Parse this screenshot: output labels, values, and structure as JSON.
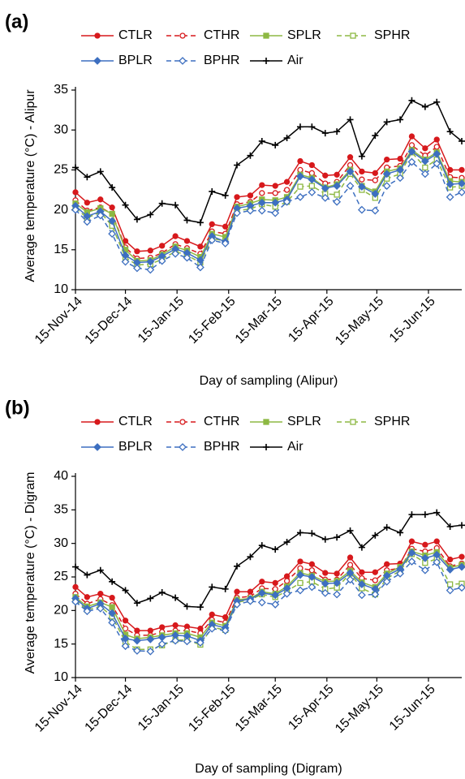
{
  "chart_data": [
    {
      "type": "line",
      "panel_label": "(a)",
      "y_label": "Average temperature (°C) - Alipur",
      "x_label": "Day of sampling (Alipur)",
      "legend": "top",
      "x": [
        "2014-11-15",
        "2014-11-22",
        "2014-11-30",
        "2014-12-07",
        "2014-12-15",
        "2014-12-22",
        "2014-12-30",
        "2015-01-06",
        "2015-01-14",
        "2015-01-21",
        "2015-01-29",
        "2015-02-05",
        "2015-02-13",
        "2015-02-20",
        "2015-02-28",
        "2015-03-07",
        "2015-03-15",
        "2015-03-22",
        "2015-03-30",
        "2015-04-06",
        "2015-04-14",
        "2015-04-21",
        "2015-04-29",
        "2015-05-06",
        "2015-05-14",
        "2015-05-21",
        "2015-05-29",
        "2015-06-05",
        "2015-06-13",
        "2015-06-20",
        "2015-06-28",
        "2015-07-05"
      ],
      "xlim": [
        "2014-11-15",
        "2015-07-05"
      ],
      "xticks": [
        {
          "value": "2014-11-15",
          "label": "15-Nov-14"
        },
        {
          "value": "2014-12-15",
          "label": "15-Dec-14"
        },
        {
          "value": "2015-01-15",
          "label": "15-Jan-15"
        },
        {
          "value": "2015-02-15",
          "label": "15-Feb-15"
        },
        {
          "value": "2015-03-15",
          "label": "15-Mar-15"
        },
        {
          "value": "2015-04-15",
          "label": "15-Apr-15"
        },
        {
          "value": "2015-05-15",
          "label": "15-May-15"
        },
        {
          "value": "2015-06-15",
          "label": "15-Jun-15"
        }
      ],
      "ylim": [
        10,
        35
      ],
      "yticks": [
        10,
        15,
        20,
        25,
        30,
        35
      ],
      "grid": false,
      "series": [
        {
          "name": "CTLR",
          "color": "#d7191c",
          "line_style": "solid",
          "marker": "circle",
          "marker_fill": "filled",
          "values": [
            22.2,
            20.9,
            21.3,
            20.3,
            16.1,
            14.8,
            14.9,
            15.5,
            16.7,
            16.1,
            15.4,
            18.2,
            17.9,
            21.6,
            21.8,
            23.1,
            23.0,
            23.5,
            26.1,
            25.6,
            24.3,
            24.4,
            26.6,
            24.8,
            24.6,
            26.3,
            26.4,
            29.2,
            27.7,
            28.8,
            25.0,
            25.0
          ]
        },
        {
          "name": "CTHR",
          "color": "#d7191c",
          "line_style": "dashed",
          "marker": "circle",
          "marker_fill": "hollow",
          "values": [
            21.2,
            19.9,
            20.3,
            19.5,
            15.3,
            13.9,
            14.0,
            14.6,
            15.7,
            15.2,
            14.5,
            17.3,
            17.0,
            20.7,
            21.0,
            22.1,
            22.1,
            22.5,
            25.0,
            24.6,
            23.3,
            23.5,
            25.6,
            23.8,
            23.7,
            25.3,
            25.5,
            28.1,
            26.8,
            27.9,
            24.1,
            24.0
          ]
        },
        {
          "name": "SPLR",
          "color": "#8db843",
          "line_style": "solid",
          "marker": "square",
          "marker_fill": "filled",
          "values": [
            20.8,
            19.7,
            20.2,
            19.5,
            15.0,
            13.6,
            13.7,
            14.4,
            15.4,
            14.9,
            14.1,
            17.0,
            16.6,
            20.4,
            20.8,
            21.3,
            21.2,
            21.6,
            24.4,
            24.0,
            22.8,
            23.2,
            25.0,
            23.0,
            22.3,
            24.8,
            25.2,
            27.5,
            26.3,
            27.2,
            23.6,
            23.5
          ]
        },
        {
          "name": "SPHR",
          "color": "#8db843",
          "line_style": "dashed",
          "marker": "square",
          "marker_fill": "hollow",
          "values": [
            20.2,
            19.0,
            19.7,
            18.0,
            14.0,
            13.1,
            13.2,
            13.8,
            14.8,
            14.3,
            13.4,
            16.4,
            16.1,
            19.9,
            20.1,
            20.7,
            20.4,
            21.0,
            22.9,
            23.0,
            22.0,
            21.9,
            24.5,
            22.5,
            21.5,
            23.9,
            24.5,
            27.2,
            25.3,
            26.3,
            22.8,
            23.0
          ]
        },
        {
          "name": "BPLR",
          "color": "#3d6fc0",
          "line_style": "solid",
          "marker": "diamond",
          "marker_fill": "filled",
          "values": [
            20.5,
            19.2,
            19.8,
            18.6,
            14.3,
            13.4,
            13.5,
            14.2,
            15.1,
            14.6,
            13.7,
            16.7,
            16.0,
            20.2,
            20.5,
            20.9,
            20.9,
            21.3,
            24.2,
            23.8,
            22.7,
            23.0,
            24.8,
            22.9,
            22.0,
            24.5,
            25.0,
            27.3,
            26.1,
            27.0,
            23.2,
            23.3
          ]
        },
        {
          "name": "BPHR",
          "color": "#3d6fc0",
          "line_style": "dashed",
          "marker": "diamond",
          "marker_fill": "hollow",
          "values": [
            20.0,
            18.5,
            19.3,
            17.0,
            13.5,
            12.7,
            12.5,
            13.6,
            14.5,
            14.0,
            12.8,
            16.2,
            15.8,
            19.6,
            19.9,
            19.9,
            19.6,
            21.0,
            21.6,
            22.2,
            21.5,
            21.0,
            23.0,
            20.0,
            19.9,
            23.0,
            24.0,
            26.0,
            24.5,
            25.8,
            21.6,
            22.2
          ]
        },
        {
          "name": "Air",
          "color": "#000000",
          "line_style": "solid",
          "marker": "plus",
          "marker_fill": "filled",
          "values": [
            25.3,
            24.1,
            24.8,
            22.8,
            20.6,
            18.8,
            19.4,
            20.8,
            20.6,
            18.7,
            18.4,
            22.3,
            21.8,
            25.6,
            26.8,
            28.6,
            28.1,
            29.0,
            30.4,
            30.4,
            29.6,
            29.8,
            31.3,
            26.7,
            29.3,
            31.0,
            31.3,
            33.7,
            32.9,
            33.5,
            29.8,
            28.6
          ]
        }
      ]
    },
    {
      "type": "line",
      "panel_label": "(b)",
      "y_label": "Average temperature (°C) - Digram",
      "x_label": "Day of sampling (Digram)",
      "legend": "top",
      "x": [
        "2014-11-15",
        "2014-11-22",
        "2014-11-30",
        "2014-12-07",
        "2014-12-15",
        "2014-12-22",
        "2014-12-30",
        "2015-01-06",
        "2015-01-14",
        "2015-01-21",
        "2015-01-29",
        "2015-02-05",
        "2015-02-13",
        "2015-02-20",
        "2015-02-28",
        "2015-03-07",
        "2015-03-15",
        "2015-03-22",
        "2015-03-30",
        "2015-04-06",
        "2015-04-14",
        "2015-04-21",
        "2015-04-29",
        "2015-05-06",
        "2015-05-14",
        "2015-05-21",
        "2015-05-29",
        "2015-06-05",
        "2015-06-13",
        "2015-06-20",
        "2015-06-28",
        "2015-07-05"
      ],
      "xlim": [
        "2014-11-15",
        "2015-07-05"
      ],
      "xticks": [
        {
          "value": "2014-11-15",
          "label": "15-Nov-14"
        },
        {
          "value": "2014-12-15",
          "label": "15-Dec-14"
        },
        {
          "value": "2015-01-15",
          "label": "15-Jan-15"
        },
        {
          "value": "2015-02-15",
          "label": "15-Feb-15"
        },
        {
          "value": "2015-03-15",
          "label": "15-Mar-15"
        },
        {
          "value": "2015-04-15",
          "label": "15-Apr-15"
        },
        {
          "value": "2015-05-15",
          "label": "15-May-15"
        },
        {
          "value": "2015-06-15",
          "label": "15-Jun-15"
        }
      ],
      "ylim": [
        10,
        40
      ],
      "yticks": [
        10,
        15,
        20,
        25,
        30,
        35,
        40
      ],
      "grid": false,
      "series": [
        {
          "name": "CTLR",
          "color": "#d7191c",
          "line_style": "solid",
          "marker": "circle",
          "marker_fill": "filled",
          "values": [
            23.5,
            22.0,
            22.5,
            21.9,
            18.5,
            17.0,
            17.0,
            17.5,
            17.8,
            17.6,
            17.3,
            19.4,
            19.0,
            22.8,
            22.8,
            24.3,
            24.1,
            25.1,
            27.3,
            26.9,
            25.6,
            25.5,
            27.9,
            25.7,
            25.7,
            26.9,
            27.0,
            30.3,
            29.8,
            30.3,
            27.6,
            28.0
          ]
        },
        {
          "name": "CTHR",
          "color": "#d7191c",
          "line_style": "dashed",
          "marker": "circle",
          "marker_fill": "hollow",
          "values": [
            22.5,
            21.0,
            21.7,
            20.8,
            17.3,
            16.3,
            16.3,
            16.8,
            17.0,
            17.0,
            16.6,
            18.6,
            18.2,
            21.9,
            22.1,
            23.3,
            23.2,
            24.4,
            26.3,
            26.0,
            24.6,
            24.6,
            26.8,
            24.8,
            24.5,
            26.0,
            26.3,
            29.2,
            28.8,
            29.3,
            26.6,
            27.0
          ]
        },
        {
          "name": "SPLR",
          "color": "#8db843",
          "line_style": "solid",
          "marker": "square",
          "marker_fill": "filled",
          "values": [
            22.0,
            20.6,
            21.2,
            20.5,
            16.4,
            15.8,
            16.0,
            16.3,
            16.6,
            16.6,
            16.0,
            18.2,
            17.7,
            21.6,
            21.8,
            22.8,
            22.5,
            23.6,
            25.6,
            25.2,
            24.3,
            24.4,
            25.9,
            24.2,
            23.5,
            25.5,
            26.5,
            28.8,
            28.2,
            28.7,
            26.4,
            26.8
          ]
        },
        {
          "name": "SPHR",
          "color": "#8db843",
          "line_style": "dashed",
          "marker": "square",
          "marker_fill": "hollow",
          "values": [
            21.5,
            20.1,
            20.6,
            19.1,
            15.3,
            14.2,
            14.2,
            14.8,
            15.6,
            15.6,
            14.9,
            17.5,
            17.1,
            21.2,
            21.6,
            22.4,
            22.0,
            22.9,
            24.1,
            24.3,
            23.2,
            23.4,
            25.5,
            23.3,
            22.4,
            24.8,
            25.9,
            28.4,
            27.1,
            27.7,
            23.9,
            24.0
          ]
        },
        {
          "name": "BPLR",
          "color": "#3d6fc0",
          "line_style": "solid",
          "marker": "diamond",
          "marker_fill": "filled",
          "values": [
            21.8,
            20.3,
            21.0,
            19.6,
            15.8,
            15.5,
            15.7,
            16.0,
            16.3,
            16.2,
            15.5,
            17.9,
            17.4,
            21.4,
            21.7,
            22.6,
            22.3,
            23.3,
            25.3,
            25.0,
            24.0,
            24.1,
            25.6,
            23.9,
            23.2,
            25.2,
            26.2,
            28.6,
            27.8,
            28.3,
            26.1,
            26.5
          ]
        },
        {
          "name": "BPHR",
          "color": "#3d6fc0",
          "line_style": "dashed",
          "marker": "diamond",
          "marker_fill": "hollow",
          "values": [
            21.3,
            19.9,
            20.3,
            18.2,
            14.7,
            14.0,
            13.9,
            15.0,
            15.5,
            15.4,
            15.2,
            17.3,
            17.0,
            20.9,
            21.4,
            21.2,
            20.9,
            22.5,
            23.0,
            23.5,
            22.6,
            22.4,
            24.6,
            22.3,
            22.4,
            24.3,
            25.5,
            27.3,
            26.0,
            27.2,
            23.0,
            23.4
          ]
        },
        {
          "name": "Air",
          "color": "#000000",
          "line_style": "solid",
          "marker": "plus",
          "marker_fill": "filled",
          "values": [
            26.5,
            25.3,
            26.0,
            24.3,
            23.0,
            21.1,
            21.8,
            22.7,
            21.9,
            20.6,
            20.5,
            23.5,
            23.2,
            26.6,
            28.0,
            29.7,
            29.1,
            30.2,
            31.6,
            31.5,
            30.6,
            30.9,
            31.9,
            29.4,
            31.2,
            32.4,
            31.6,
            34.3,
            34.3,
            34.6,
            32.5,
            32.7
          ]
        }
      ]
    }
  ]
}
